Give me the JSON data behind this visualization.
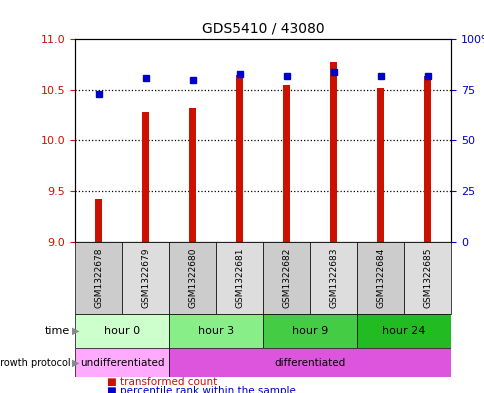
{
  "title": "GDS5410 / 43080",
  "samples": [
    "GSM1322678",
    "GSM1322679",
    "GSM1322680",
    "GSM1322681",
    "GSM1322682",
    "GSM1322683",
    "GSM1322684",
    "GSM1322685"
  ],
  "bar_values": [
    9.42,
    10.28,
    10.32,
    10.65,
    10.55,
    10.78,
    10.52,
    10.64
  ],
  "bar_base": 9.0,
  "percentile_values": [
    73,
    81,
    80,
    83,
    82,
    84,
    82,
    82
  ],
  "ylim_left": [
    9.0,
    11.0
  ],
  "ylim_right": [
    0,
    100
  ],
  "yticks_left": [
    9.0,
    9.5,
    10.0,
    10.5,
    11.0
  ],
  "yticks_right": [
    0,
    25,
    50,
    75,
    100
  ],
  "bar_color": "#cc1100",
  "percentile_color": "#0000cc",
  "grid_color": "#000000",
  "bar_width": 0.15,
  "time_groups": [
    {
      "label": "hour 0",
      "start": 0,
      "end": 2,
      "color": "#ccffcc"
    },
    {
      "label": "hour 3",
      "start": 2,
      "end": 4,
      "color": "#88ee88"
    },
    {
      "label": "hour 9",
      "start": 4,
      "end": 6,
      "color": "#44cc44"
    },
    {
      "label": "hour 24",
      "start": 6,
      "end": 8,
      "color": "#22bb22"
    }
  ],
  "protocol_groups": [
    {
      "label": "undifferentiated",
      "start": 0,
      "end": 2,
      "color": "#ffaaff"
    },
    {
      "label": "differentiated",
      "start": 2,
      "end": 8,
      "color": "#dd55dd"
    }
  ],
  "sample_box_colors": [
    "#cccccc",
    "#dddddd"
  ],
  "tick_label_color_left": "#cc1100",
  "tick_label_color_right": "#0000cc",
  "legend": [
    {
      "label": "transformed count",
      "color": "#cc1100"
    },
    {
      "label": "percentile rank within the sample",
      "color": "#0000cc"
    }
  ]
}
